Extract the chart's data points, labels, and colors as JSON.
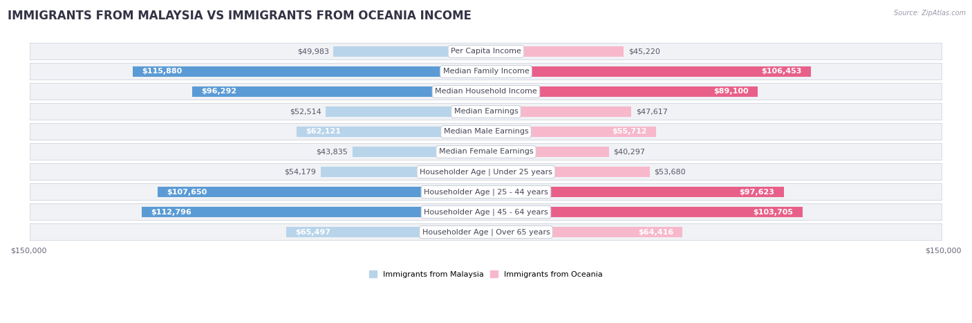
{
  "title": "IMMIGRANTS FROM MALAYSIA VS IMMIGRANTS FROM OCEANIA INCOME",
  "source": "Source: ZipAtlas.com",
  "categories": [
    "Per Capita Income",
    "Median Family Income",
    "Median Household Income",
    "Median Earnings",
    "Median Male Earnings",
    "Median Female Earnings",
    "Householder Age | Under 25 years",
    "Householder Age | 25 - 44 years",
    "Householder Age | 45 - 64 years",
    "Householder Age | Over 65 years"
  ],
  "malaysia_values": [
    49983,
    115880,
    96292,
    52514,
    62121,
    43835,
    54179,
    107650,
    112796,
    65497
  ],
  "oceania_values": [
    45220,
    106453,
    89100,
    47617,
    55712,
    40297,
    53680,
    97623,
    103705,
    64416
  ],
  "malaysia_labels": [
    "$49,983",
    "$115,880",
    "$96,292",
    "$52,514",
    "$62,121",
    "$43,835",
    "$54,179",
    "$107,650",
    "$112,796",
    "$65,497"
  ],
  "oceania_labels": [
    "$45,220",
    "$106,453",
    "$89,100",
    "$47,617",
    "$55,712",
    "$40,297",
    "$53,680",
    "$97,623",
    "$103,705",
    "$64,416"
  ],
  "malaysia_color_light": "#b8d4ea",
  "malaysia_color_dark": "#5b9bd5",
  "oceania_color_light": "#f7b8cc",
  "oceania_color_dark": "#e8608a",
  "malaysia_dark_threshold": 80000,
  "oceania_dark_threshold": 80000,
  "max_value": 150000,
  "inside_threshold_malaysia": 55000,
  "inside_threshold_oceania": 55000,
  "legend_malaysia": "Immigrants from Malaysia",
  "legend_oceania": "Immigrants from Oceania",
  "bg_color": "#ffffff",
  "row_bg_light": "#f0f2f5",
  "row_bg_dark": "#e4e8ee",
  "title_fontsize": 12,
  "label_fontsize": 8,
  "category_fontsize": 8,
  "axis_label_fontsize": 8
}
